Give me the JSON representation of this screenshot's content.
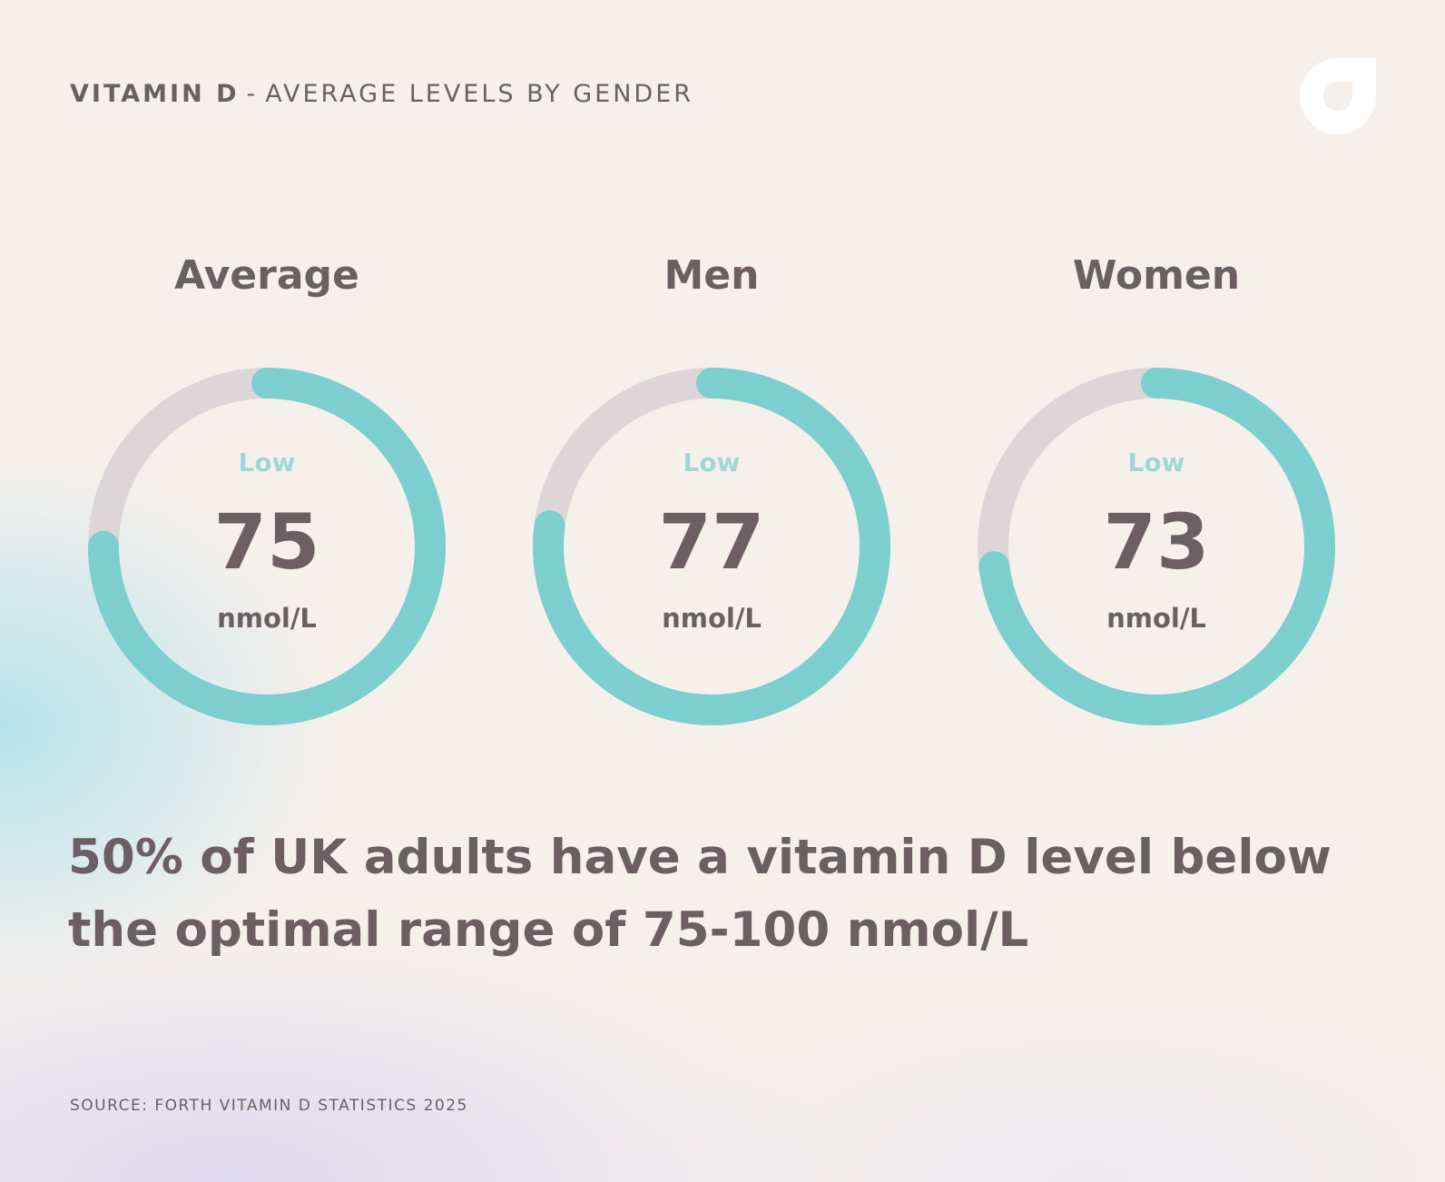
{
  "header": {
    "title_strong": "VITAMIN D",
    "separator": "-",
    "title_rest": "AVERAGE LEVELS BY GENDER"
  },
  "colors": {
    "accent": "#7ccfce",
    "track": "#dcd6d8",
    "text": "#6b5f63",
    "status": "#9fd8d6"
  },
  "chart_data": {
    "type": "gauge",
    "unit": "nmol/L",
    "scale": [
      0,
      100
    ],
    "series": [
      {
        "label": "Average",
        "value": 75,
        "status": "Low",
        "unit": "nmol/L"
      },
      {
        "label": "Men",
        "value": 77,
        "status": "Low",
        "unit": "nmol/L"
      },
      {
        "label": "Women",
        "value": 73,
        "status": "Low",
        "unit": "nmol/L"
      }
    ]
  },
  "headline": "50% of UK adults have a vitamin D level below the optimal range of 75-100 nmol/L",
  "source": "SOURCE: FORTH VITAMIN D STATISTICS 2025"
}
